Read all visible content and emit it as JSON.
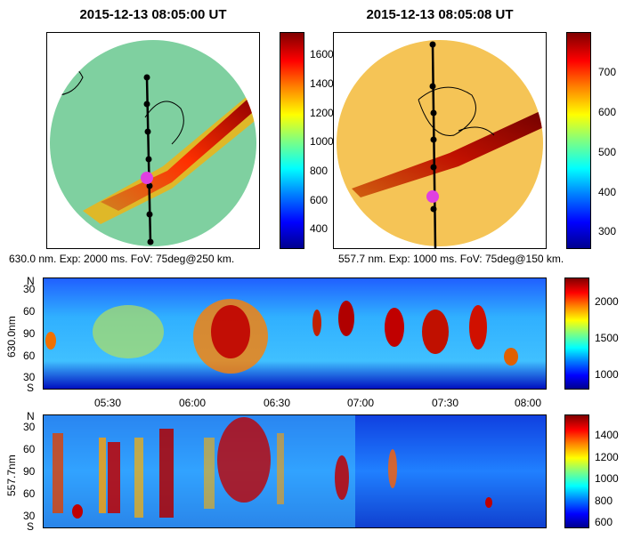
{
  "panels": [
    {
      "title": "2015-12-13 08:05:00 UT",
      "caption": "630.0 nm. Exp: 2000 ms. FoV: 75deg@250 km.",
      "colorbar_ticks": [
        "1600",
        "1400",
        "1200",
        "1000",
        "800",
        "600",
        "400"
      ]
    },
    {
      "title": "2015-12-13 08:05:08 UT",
      "caption": "557.7 nm. Exp: 1000 ms. FoV: 75deg@150 km.",
      "colorbar_ticks": [
        "700",
        "600",
        "500",
        "400",
        "300"
      ]
    }
  ],
  "chart_data": [
    {
      "type": "heatmap",
      "title": "2015-12-13 08:05:00 UT",
      "caption": "630.0 nm. Exp: 2000 ms. FoV: 75deg@250 km.",
      "colorbar": [
        1600,
        1400,
        1200,
        1000,
        800,
        600,
        400
      ]
    },
    {
      "type": "heatmap",
      "title": "2015-12-13 08:05:08 UT",
      "caption": "557.7 nm. Exp: 1000 ms. FoV: 75deg@150 km.",
      "colorbar": [
        700,
        600,
        500,
        400,
        300
      ]
    },
    {
      "type": "heatmap",
      "ylabel": "630.0nm",
      "yticks": [
        "N",
        "30",
        "60",
        "90",
        "60",
        "30",
        "S"
      ],
      "xticks": [
        "05:30",
        "06:00",
        "06:30",
        "07:00",
        "07:30",
        "08:00"
      ],
      "colorbar": [
        2000,
        1500,
        1000
      ]
    },
    {
      "type": "heatmap",
      "ylabel": "557.7nm",
      "yticks": [
        "N",
        "30",
        "60",
        "90",
        "60",
        "30",
        "S"
      ],
      "colorbar": [
        1400,
        1200,
        1000,
        800,
        600
      ]
    }
  ],
  "keogram1": {
    "ylabel": "630.0nm",
    "yticks": [
      "N",
      "30",
      "60",
      "90",
      "60",
      "30",
      "S"
    ],
    "xticks": [
      "05:30",
      "06:00",
      "06:30",
      "07:00",
      "07:30",
      "08:00"
    ],
    "colorbar_ticks": [
      "2000",
      "1500",
      "1000"
    ]
  },
  "keogram2": {
    "ylabel": "557.7nm",
    "yticks": [
      "N",
      "30",
      "60",
      "90",
      "60",
      "30",
      "S"
    ],
    "colorbar_ticks": [
      "1400",
      "1200",
      "1000",
      "800",
      "600"
    ]
  }
}
